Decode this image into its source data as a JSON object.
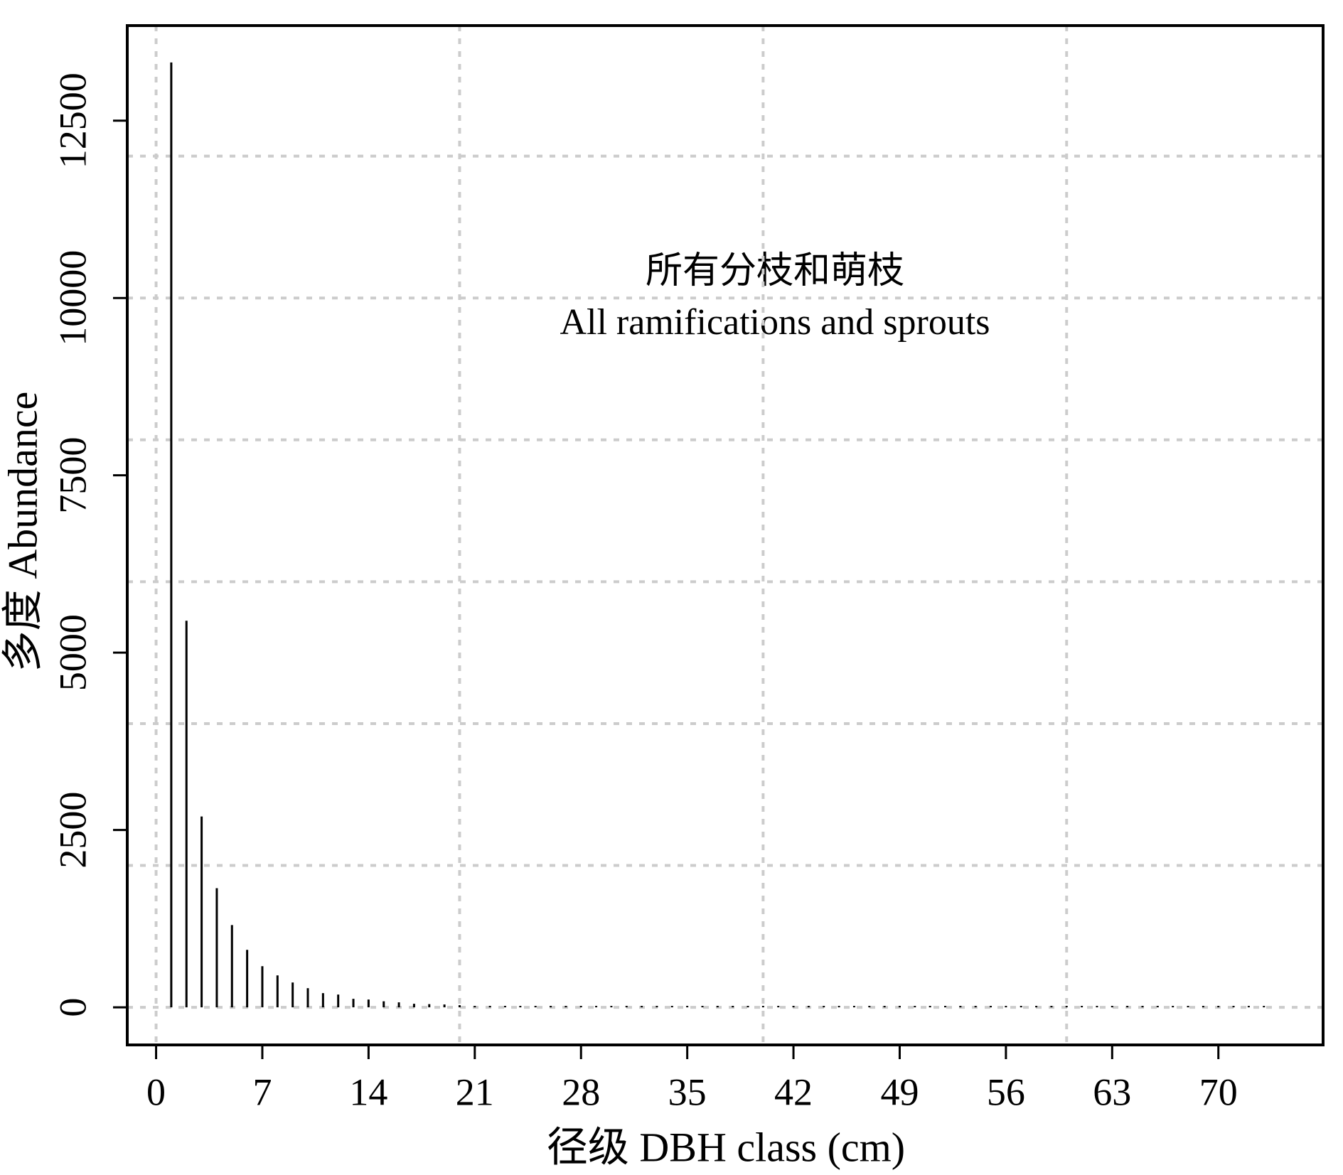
{
  "chart_data": {
    "type": "bar",
    "annotations": [
      "所有分枝和萌枝",
      "All ramifications and sprouts"
    ],
    "xlabel": "径级 DBH class (cm)",
    "ylabel": "多度 Abundance",
    "x": [
      1,
      2,
      3,
      4,
      5,
      6,
      7,
      8,
      9,
      10,
      11,
      12,
      13,
      14,
      15,
      16,
      17,
      18,
      19,
      20,
      21,
      22,
      23,
      24,
      25,
      26,
      27,
      28,
      29,
      30,
      31,
      32,
      33,
      34,
      35,
      36,
      37,
      38,
      39,
      40,
      41,
      42,
      43,
      44,
      45,
      46,
      47,
      48,
      49,
      50,
      51,
      52,
      53,
      54,
      55,
      56,
      57,
      58,
      59,
      60,
      61,
      62,
      63,
      64,
      65,
      66,
      67,
      68,
      69,
      70,
      71,
      72,
      73
    ],
    "values": [
      13320,
      5450,
      2690,
      1680,
      1160,
      810,
      580,
      450,
      350,
      270,
      200,
      180,
      120,
      110,
      85,
      70,
      50,
      45,
      40,
      30,
      10,
      0,
      0,
      8,
      8,
      6,
      6,
      5,
      5,
      0,
      0,
      0,
      5,
      5,
      5,
      5,
      4,
      4,
      0,
      0,
      0,
      4,
      4,
      3,
      3,
      3,
      0,
      0,
      0,
      0,
      3,
      3,
      3,
      3,
      3,
      0,
      0,
      0,
      2,
      2,
      2,
      2,
      2,
      0,
      0,
      0,
      0,
      2,
      2,
      2,
      2,
      2,
      2
    ],
    "color": "#000000",
    "xlim": [
      -1.9,
      76.9
    ],
    "ylim": [
      -530,
      13840
    ],
    "xticks": [
      0,
      7,
      14,
      21,
      28,
      35,
      42,
      49,
      56,
      63,
      70
    ],
    "yticks": [
      0,
      2500,
      5000,
      7500,
      10000,
      12500
    ],
    "xgrid": [
      0,
      20,
      40,
      60
    ],
    "ygrid": [
      0,
      2000,
      4000,
      6000,
      8000,
      10000,
      12000
    ],
    "grid": true
  }
}
